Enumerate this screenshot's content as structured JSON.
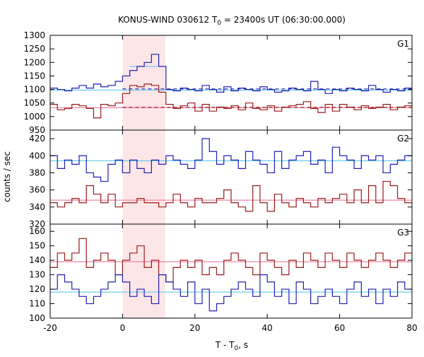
{
  "chart_data": {
    "type": "line",
    "title_main": "KONUS-WIND 030612 T",
    "title_sub": "0",
    "title_rest": " = 23400s UT (06:30:00.000)",
    "xlabel_main": "T - T",
    "xlabel_sub": "0",
    "xlabel_rest": ", s",
    "ylabel": "counts / sec",
    "xlim": [
      -20,
      80
    ],
    "x_ticks": [
      -20,
      0,
      20,
      40,
      60,
      80
    ],
    "highlight_interval": [
      0,
      11.8
    ],
    "grid": false,
    "bin_edges": [
      -20,
      -18,
      -16,
      -14,
      -12,
      -10,
      -8,
      -6,
      -4,
      -2,
      0,
      2,
      4,
      6,
      8,
      10,
      12,
      14,
      16,
      18,
      20,
      22,
      24,
      26,
      28,
      30,
      32,
      34,
      36,
      38,
      40,
      42,
      44,
      46,
      48,
      50,
      52,
      54,
      56,
      58,
      60,
      62,
      64,
      66,
      68,
      70,
      72,
      74,
      76,
      78,
      80
    ],
    "panels": [
      {
        "label": "G1",
        "ylim": [
          950,
          1300
        ],
        "y_ticks": [
          950,
          1000,
          1050,
          1100,
          1150,
          1200,
          1250,
          1300
        ],
        "fine_bin_step": 0.25,
        "series": [
          {
            "color": "#1f1fb4",
            "values": [
              1105,
              1100,
              1095,
              1105,
              1115,
              1105,
              1120,
              1110,
              1115,
              1130,
              1150,
              1170,
              1185,
              1200,
              1230,
              1185,
              1100,
              1095,
              1105,
              1100,
              1095,
              1115,
              1100,
              1090,
              1110,
              1095,
              1105,
              1100,
              1095,
              1110,
              1100,
              1090,
              1095,
              1105,
              1100,
              1095,
              1130,
              1100,
              1085,
              1100,
              1095,
              1105,
              1100,
              1095,
              1115,
              1100,
              1090,
              1100,
              1095,
              1105
            ],
            "background": 1098,
            "background_color": "#4fc3e8"
          },
          {
            "color": "#9a1a1a",
            "values": [
              1045,
              1025,
              1030,
              1045,
              1040,
              1030,
              995,
              1045,
              1040,
              1050,
              1085,
              1115,
              1110,
              1120,
              1115,
              1090,
              1045,
              1030,
              1040,
              1050,
              1020,
              1045,
              1020,
              1035,
              1030,
              1040,
              1025,
              1050,
              1030,
              1025,
              1040,
              1020,
              1035,
              1040,
              1045,
              1055,
              1030,
              1015,
              1045,
              1020,
              1045,
              1035,
              1025,
              1040,
              1030,
              1035,
              1045,
              1025,
              1035,
              1040
            ],
            "background": 1033,
            "background_color": "#e86a92"
          }
        ],
        "fine_series": {
          "color": "#4fc3e8",
          "start": 2.0,
          "values": [
            1185,
            1185,
            1185,
            1185,
            1185,
            1185,
            1185,
            1185,
            1185,
            1185,
            1185,
            1185,
            1185,
            1185,
            1185,
            1185,
            1185,
            1185,
            1185,
            1185,
            1185,
            1185,
            1185,
            1185,
            1185,
            1185,
            1185,
            1185,
            1185,
            1185,
            1185,
            1185,
            1185,
            1185,
            1185,
            1185,
            1185,
            1185,
            1185,
            1185
          ]
        },
        "dashed_lines": [
          {
            "color": "#1f1fb4",
            "y": 1102,
            "x_from": 0,
            "x_to": 80
          },
          {
            "color": "#9a1a1a",
            "y": 1034,
            "x_from": 0,
            "x_to": 80
          }
        ]
      },
      {
        "label": "G2",
        "ylim": [
          320,
          430
        ],
        "y_ticks": [
          320,
          340,
          360,
          380,
          400,
          420
        ],
        "series": [
          {
            "color": "#1f1fb4",
            "values": [
              400,
              385,
              395,
              390,
              400,
              380,
              375,
              370,
              390,
              395,
              380,
              395,
              385,
              380,
              395,
              390,
              400,
              395,
              390,
              385,
              395,
              420,
              405,
              390,
              400,
              395,
              385,
              405,
              395,
              390,
              380,
              405,
              385,
              395,
              400,
              405,
              390,
              395,
              380,
              410,
              400,
              395,
              385,
              400,
              395,
              400,
              380,
              390,
              395,
              400
            ],
            "background": 394,
            "background_color": "#4fc3e8"
          },
          {
            "color": "#9a1a1a",
            "values": [
              345,
              340,
              345,
              350,
              345,
              365,
              355,
              345,
              355,
              340,
              345,
              345,
              350,
              345,
              345,
              340,
              345,
              355,
              345,
              340,
              350,
              345,
              345,
              350,
              360,
              345,
              340,
              335,
              365,
              345,
              335,
              355,
              345,
              340,
              350,
              345,
              340,
              350,
              345,
              350,
              355,
              345,
              360,
              345,
              365,
              345,
              370,
              365,
              350,
              345
            ],
            "background": 348,
            "background_color": "#e86a92"
          }
        ]
      },
      {
        "label": "G3",
        "ylim": [
          100,
          165
        ],
        "y_ticks": [
          100,
          110,
          120,
          130,
          140,
          150,
          160
        ],
        "series": [
          {
            "color": "#9a1a1a",
            "values": [
              135,
              145,
              140,
              145,
              155,
              135,
              140,
              145,
              140,
              130,
              140,
              145,
              150,
              135,
              140,
              130,
              125,
              135,
              140,
              135,
              140,
              130,
              135,
              130,
              140,
              145,
              140,
              135,
              130,
              145,
              140,
              135,
              130,
              140,
              135,
              145,
              140,
              135,
              145,
              140,
              135,
              145,
              140,
              135,
              140,
              145,
              140,
              135,
              140,
              145
            ],
            "background": 139,
            "background_color": "#e86a92"
          },
          {
            "color": "#1f1fb4",
            "values": [
              120,
              130,
              125,
              120,
              115,
              110,
              115,
              120,
              125,
              130,
              125,
              115,
              120,
              115,
              110,
              130,
              125,
              120,
              115,
              125,
              110,
              120,
              105,
              110,
              115,
              120,
              125,
              120,
              115,
              130,
              125,
              115,
              120,
              110,
              125,
              120,
              110,
              115,
              120,
              115,
              110,
              120,
              125,
              115,
              120,
              110,
              120,
              115,
              125,
              120
            ],
            "background": 118,
            "background_color": "#4fc3e8"
          }
        ]
      }
    ]
  }
}
